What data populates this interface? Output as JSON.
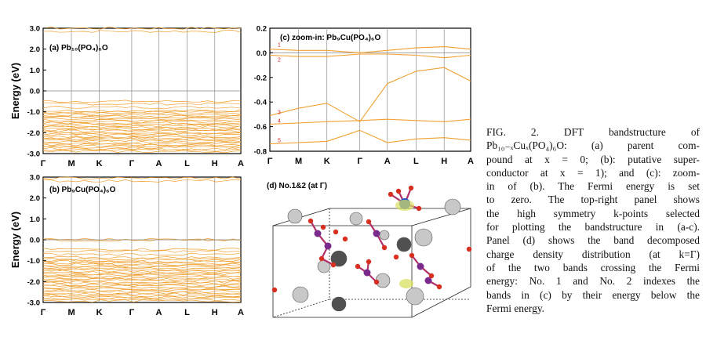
{
  "figure": {
    "panel_a": {
      "label": "(a) Pb₁₀(PO₄)₆O",
      "ylabel": "Energy (eV)",
      "yticks": [
        "3.0",
        "2.0",
        "1.0",
        "0.0",
        "-1.0",
        "-2.0",
        "-3.0"
      ]
    },
    "panel_b": {
      "label": "(b) Pb₉Cu(PO₄)₆O",
      "ylabel": "Energy (eV)",
      "yticks": [
        "3.0",
        "2.0",
        "1.0",
        "0.0",
        "-1.0",
        "-2.0",
        "-3.0"
      ]
    },
    "panel_c": {
      "label": "(c) zoom-in: Pb₉Cu(PO₄)₆O",
      "yticks": [
        "0.2",
        "0.0",
        "-0.2",
        "-0.4",
        "-0.6",
        "-0.8"
      ],
      "band_indices": [
        "1",
        "2",
        "3",
        "4",
        "5"
      ]
    },
    "panel_d": {
      "label": "(d) No.1&2 (at Γ)"
    },
    "kpath": [
      "Γ",
      "M",
      "K",
      "Γ",
      "A",
      "L",
      "H",
      "A"
    ],
    "bz_points": [
      "A",
      "Γ",
      "L",
      "H",
      "M",
      "K"
    ]
  },
  "chart_data": [
    {
      "type": "line",
      "title": "(a) Pb₁₀(PO₄)₆O",
      "ylabel": "Energy (eV)",
      "ylim": [
        -3.0,
        3.0
      ],
      "x": [
        "Γ",
        "M",
        "K",
        "Γ",
        "A",
        "L",
        "H",
        "A"
      ],
      "note_bands": "dense valence bands between -3.0 and -0.5 eV; gap to conduction bands near 2.8 eV"
    },
    {
      "type": "line",
      "title": "(b) Pb₉Cu(PO₄)₆O",
      "ylabel": "Energy (eV)",
      "ylim": [
        -3.0,
        3.0
      ],
      "x": [
        "Γ",
        "M",
        "K",
        "Γ",
        "A",
        "L",
        "H",
        "A"
      ]
    },
    {
      "type": "line",
      "title": "(c) zoom-in: Pb₉Cu(PO₄)₆O",
      "ylim": [
        -0.8,
        0.2
      ],
      "x": [
        "Γ",
        "M",
        "K",
        "Γ",
        "A",
        "L",
        "H",
        "A"
      ],
      "series": [
        {
          "name": "1",
          "values": [
            0.03,
            0.02,
            0.02,
            0.0,
            0.02,
            0.04,
            0.05,
            0.03
          ]
        },
        {
          "name": "2",
          "values": [
            -0.02,
            -0.03,
            -0.03,
            -0.01,
            -0.01,
            -0.02,
            -0.04,
            -0.02
          ]
        },
        {
          "name": "3",
          "values": [
            -0.51,
            -0.45,
            -0.41,
            -0.56,
            -0.25,
            -0.15,
            -0.12,
            -0.23
          ]
        },
        {
          "name": "4",
          "values": [
            -0.58,
            -0.57,
            -0.56,
            -0.55,
            -0.54,
            -0.55,
            -0.56,
            -0.54
          ]
        },
        {
          "name": "5",
          "values": [
            -0.74,
            -0.73,
            -0.72,
            -0.63,
            -0.73,
            -0.7,
            -0.69,
            -0.71
          ]
        }
      ]
    }
  ],
  "caption": {
    "lines": [
      "FIG. 2.     DFT bandstructure of",
      "Pb₁₀₋ₓCuₓ(PO₄)₆O: (a) parent com-",
      "pound at x = 0; (b): putative super-",
      "conductor at x = 1); and (c): zoom-",
      "in of (b).   The Fermi energy is set",
      "to zero.   The top-right panel shows",
      "the high symmetry k-points selected",
      "for plotting the bandstructure in (a-c).",
      "Panel (d) shows the band decomposed",
      "charge density distribution (at k=Γ)",
      "of the two bands crossing the Fermi",
      "energy: No. 1 and No. 2 indexes the",
      "bands in (c) by their energy below the",
      "Fermi energy."
    ]
  },
  "colors": {
    "band": "#f0a030",
    "axis": "#000000",
    "kline": "#999999",
    "bzpoint": "#e03030"
  }
}
